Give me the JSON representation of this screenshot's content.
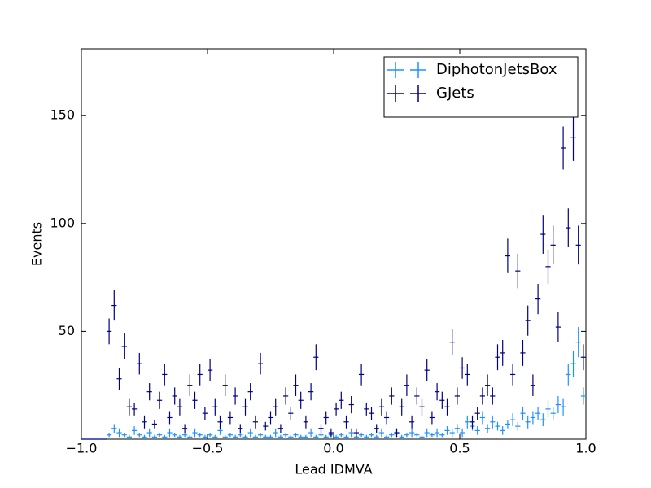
{
  "chart_data": {
    "type": "errorbar",
    "x_label": "Lead IDMVA",
    "y_label": "Events",
    "xlim": [
      -1,
      1
    ],
    "ylim": [
      0,
      181
    ],
    "xticks": [
      {
        "value": -1,
        "label": "−1.0"
      },
      {
        "value": -0.5,
        "label": "−0.5"
      },
      {
        "value": 0,
        "label": "0.0"
      },
      0.5,
      {
        "value": 1,
        "label": "1.0"
      }
    ],
    "yticks": [
      50,
      100,
      150
    ],
    "legend": "upper right",
    "x": [
      -0.99,
      -0.97,
      -0.95,
      -0.93,
      -0.91,
      -0.89,
      -0.87,
      -0.85,
      -0.83,
      -0.81,
      -0.79,
      -0.77,
      -0.75,
      -0.73,
      -0.71,
      -0.69,
      -0.67,
      -0.65,
      -0.63,
      -0.61,
      -0.59,
      -0.57,
      -0.55,
      -0.53,
      -0.51,
      -0.49,
      -0.47,
      -0.45,
      -0.43,
      -0.41,
      -0.39,
      -0.37,
      -0.35,
      -0.33,
      -0.31,
      -0.29,
      -0.27,
      -0.25,
      -0.23,
      -0.21,
      -0.19,
      -0.17,
      -0.15,
      -0.13,
      -0.11,
      -0.09,
      -0.07,
      -0.05,
      -0.03,
      -0.01,
      0.01,
      0.03,
      0.05,
      0.07,
      0.09,
      0.11,
      0.13,
      0.15,
      0.17,
      0.19,
      0.21,
      0.23,
      0.25,
      0.27,
      0.29,
      0.31,
      0.33,
      0.35,
      0.37,
      0.39,
      0.41,
      0.43,
      0.45,
      0.47,
      0.49,
      0.51,
      0.53,
      0.55,
      0.57,
      0.59,
      0.61,
      0.63,
      0.65,
      0.67,
      0.69,
      0.71,
      0.73,
      0.75,
      0.77,
      0.79,
      0.81,
      0.83,
      0.85,
      0.87,
      0.89,
      0.91,
      0.93,
      0.95,
      0.97,
      0.99
    ],
    "series": [
      {
        "name": "DiphotonJetsBox",
        "color": "#1e90ff",
        "values": [
          0,
          0,
          0,
          0,
          0,
          2,
          5,
          3,
          2,
          1,
          4,
          2,
          1,
          3,
          1,
          2,
          1,
          3,
          2,
          1,
          2,
          1,
          3,
          2,
          1,
          2,
          1,
          4,
          1,
          2,
          1,
          2,
          1,
          3,
          1,
          2,
          1,
          1,
          3,
          1,
          2,
          1,
          2,
          1,
          1,
          3,
          1,
          2,
          1,
          2,
          1,
          2,
          1,
          3,
          1,
          2,
          1,
          2,
          1,
          3,
          1,
          2,
          3,
          1,
          2,
          3,
          2,
          1,
          3,
          2,
          3,
          2,
          4,
          3,
          5,
          3,
          8,
          6,
          4,
          10,
          5,
          8,
          6,
          4,
          7,
          9,
          6,
          12,
          8,
          10,
          12,
          9,
          14,
          12,
          16,
          15,
          30,
          35,
          45,
          20
        ],
        "errors": [
          0,
          0,
          0,
          0,
          0,
          1,
          2,
          2,
          1,
          1,
          2,
          1,
          1,
          2,
          1,
          1,
          1,
          2,
          1,
          1,
          1,
          1,
          2,
          1,
          1,
          1,
          1,
          2,
          1,
          1,
          1,
          1,
          1,
          2,
          1,
          1,
          1,
          1,
          2,
          1,
          1,
          1,
          1,
          1,
          1,
          2,
          1,
          1,
          1,
          1,
          1,
          1,
          1,
          2,
          1,
          1,
          1,
          1,
          1,
          2,
          1,
          1,
          2,
          1,
          1,
          2,
          1,
          1,
          2,
          1,
          2,
          1,
          2,
          2,
          2,
          2,
          3,
          2,
          2,
          3,
          2,
          3,
          2,
          2,
          2,
          3,
          2,
          3,
          3,
          3,
          3,
          3,
          4,
          3,
          4,
          4,
          5,
          6,
          7,
          4
        ]
      },
      {
        "name": "GJets",
        "color": "#000080",
        "values": [
          0,
          0,
          0,
          0,
          0,
          50,
          62,
          28,
          43,
          15,
          14,
          35,
          8,
          22,
          7,
          18,
          30,
          10,
          20,
          15,
          5,
          25,
          18,
          30,
          12,
          32,
          15,
          8,
          25,
          10,
          20,
          5,
          15,
          22,
          8,
          35,
          6,
          10,
          15,
          5,
          20,
          12,
          25,
          18,
          8,
          22,
          38,
          5,
          10,
          3,
          14,
          18,
          8,
          16,
          3,
          30,
          14,
          12,
          5,
          15,
          10,
          20,
          3,
          15,
          25,
          8,
          20,
          15,
          32,
          10,
          22,
          18,
          15,
          45,
          20,
          33,
          30,
          8,
          12,
          20,
          25,
          20,
          38,
          40,
          85,
          30,
          78,
          40,
          55,
          25,
          65,
          95,
          80,
          90,
          52,
          135,
          98,
          140,
          90,
          38
        ],
        "errors": [
          0,
          0,
          0,
          0,
          0,
          6,
          7,
          5,
          6,
          4,
          3,
          5,
          3,
          4,
          2,
          4,
          5,
          3,
          4,
          4,
          2,
          5,
          4,
          5,
          3,
          5,
          4,
          3,
          5,
          3,
          4,
          2,
          4,
          4,
          3,
          5,
          2,
          3,
          4,
          2,
          4,
          3,
          5,
          4,
          3,
          4,
          6,
          2,
          3,
          2,
          3,
          4,
          3,
          4,
          2,
          5,
          3,
          3,
          2,
          4,
          3,
          4,
          2,
          4,
          5,
          3,
          4,
          4,
          5,
          3,
          4,
          4,
          4,
          6,
          4,
          5,
          5,
          3,
          3,
          4,
          5,
          4,
          6,
          6,
          8,
          5,
          8,
          6,
          7,
          5,
          7,
          9,
          8,
          9,
          7,
          10,
          9,
          11,
          9,
          6
        ]
      }
    ]
  }
}
